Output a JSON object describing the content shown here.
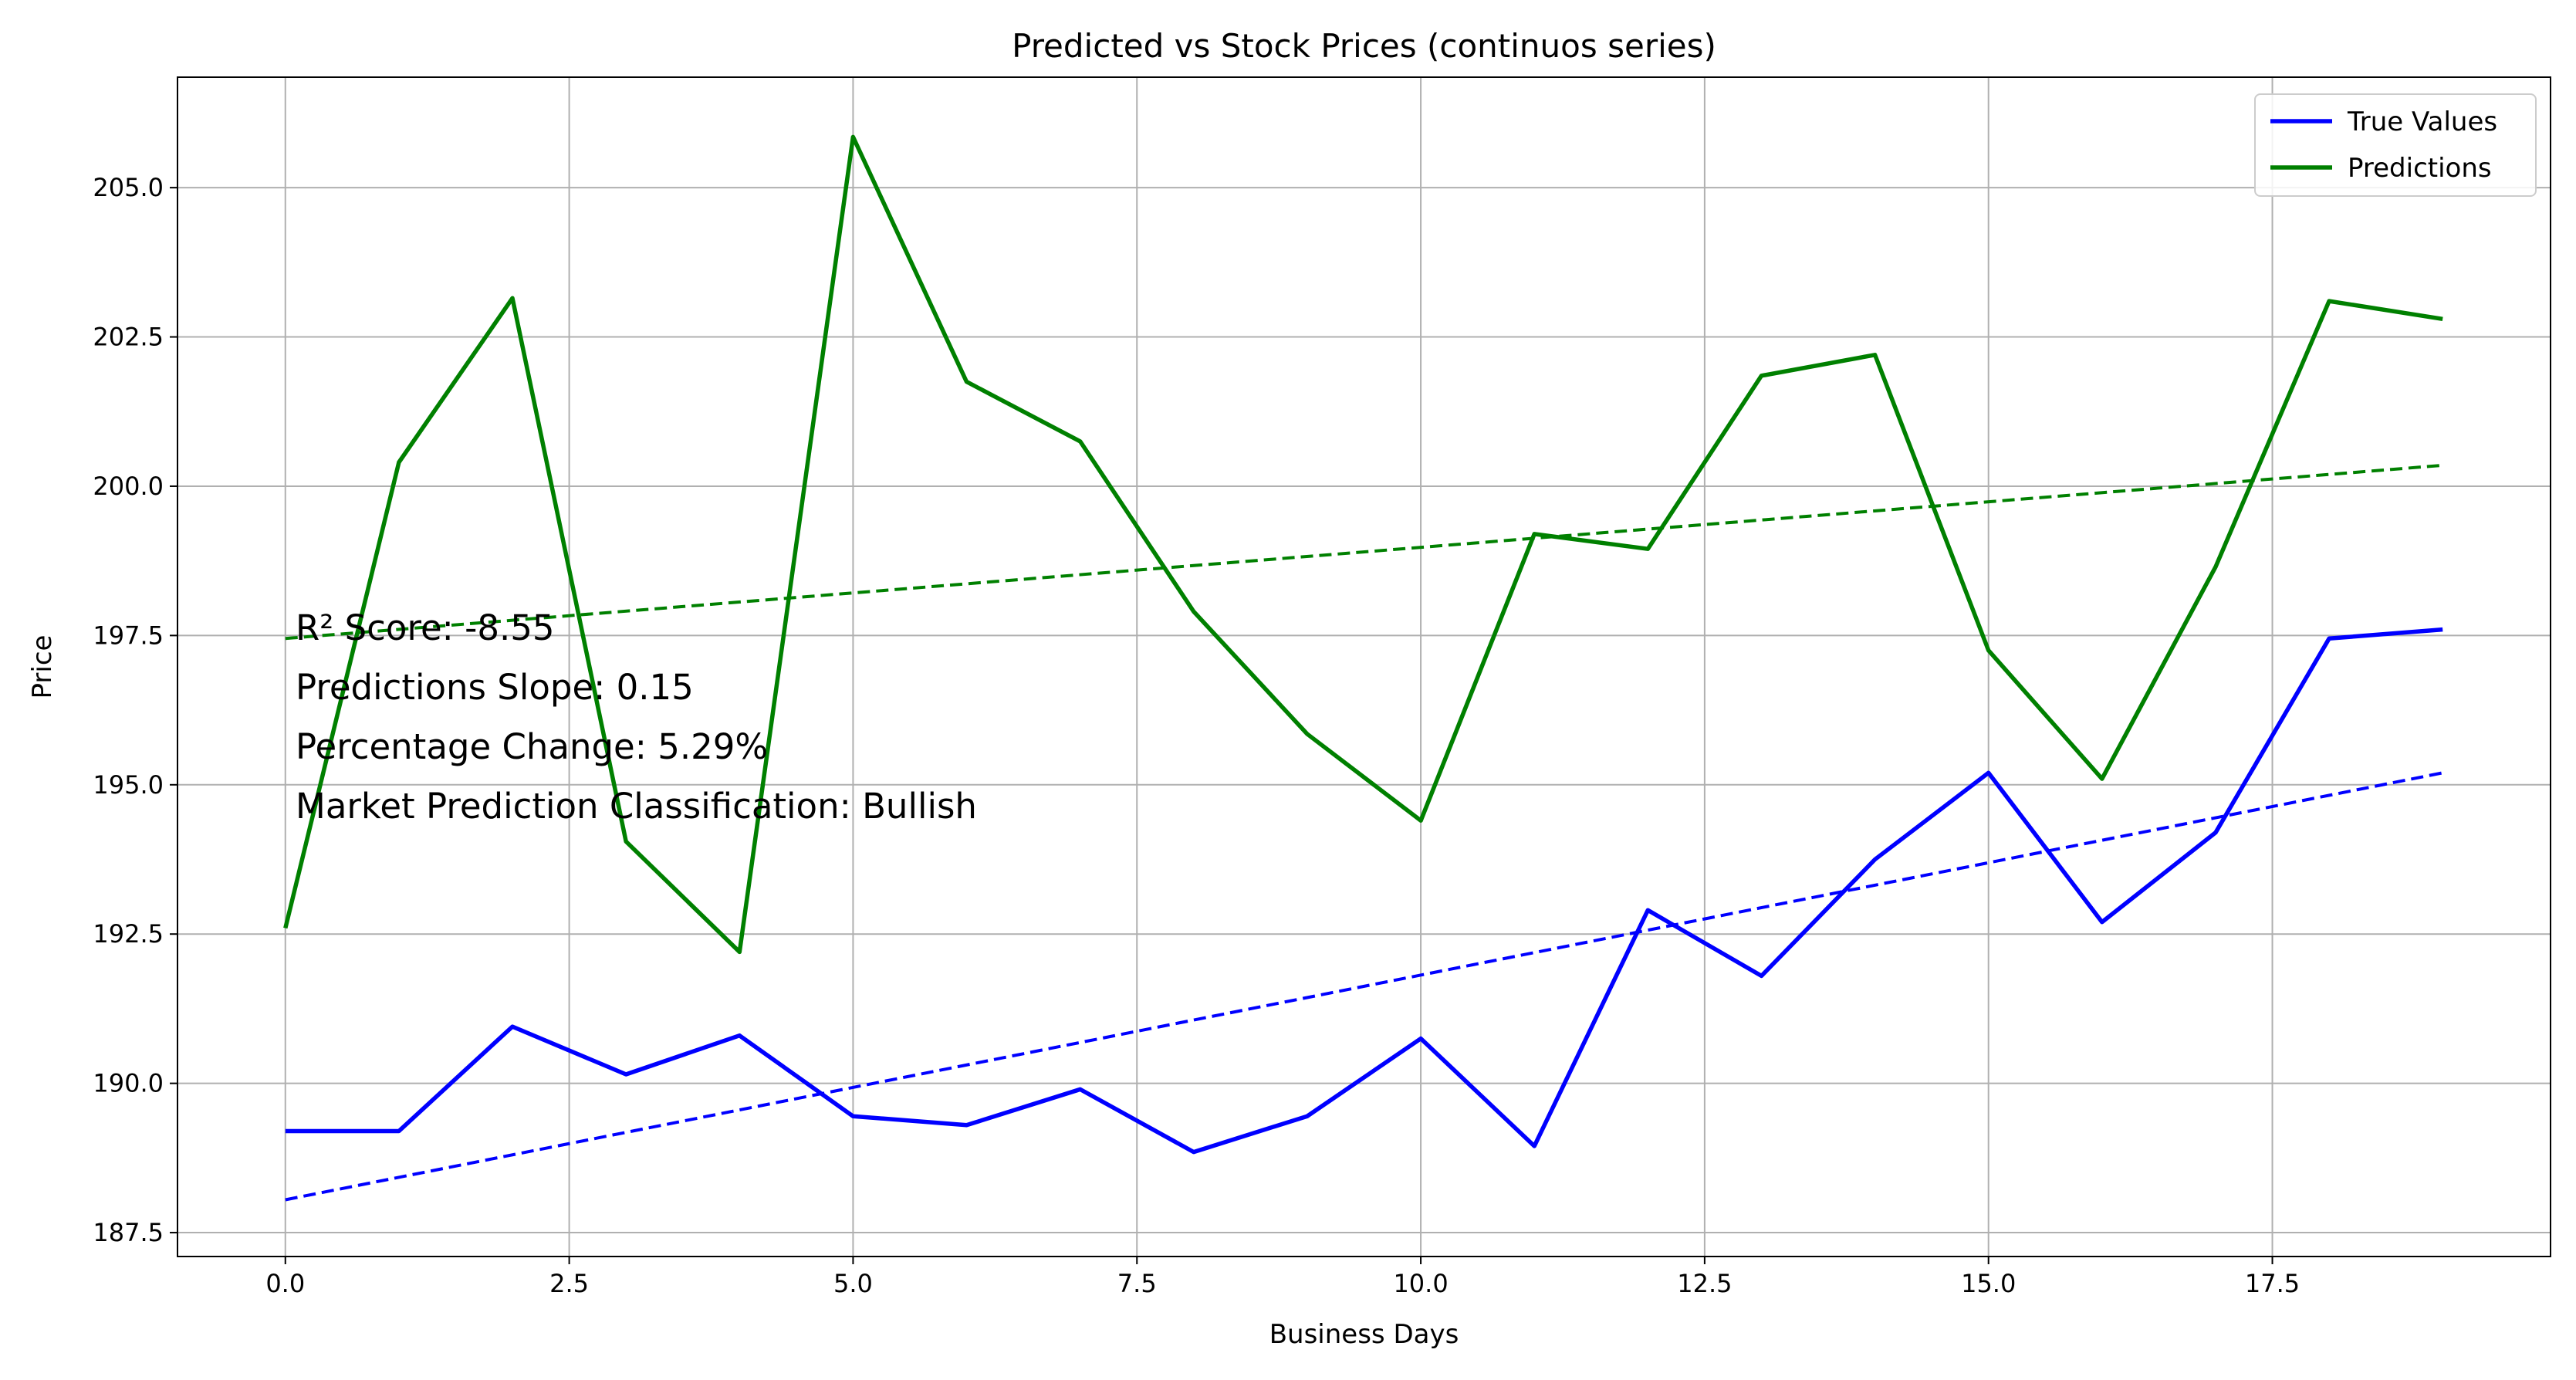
{
  "chart_data": {
    "type": "line",
    "title": "Predicted vs Stock Prices (continuos series)",
    "xlabel": "Business Days",
    "ylabel": "Price",
    "xlim": [
      -0.95,
      19.95
    ],
    "ylim": [
      187.1,
      206.85
    ],
    "xticks": [
      0.0,
      2.5,
      5.0,
      7.5,
      10.0,
      12.5,
      15.0,
      17.5
    ],
    "xtick_labels": [
      "0.0",
      "2.5",
      "5.0",
      "7.5",
      "10.0",
      "12.5",
      "15.0",
      "17.5"
    ],
    "yticks": [
      187.5,
      190.0,
      192.5,
      195.0,
      197.5,
      200.0,
      202.5,
      205.0
    ],
    "ytick_labels": [
      "187.5",
      "190.0",
      "192.5",
      "195.0",
      "197.5",
      "200.0",
      "202.5",
      "205.0"
    ],
    "grid": true,
    "legend_position": "top-right",
    "x": [
      0,
      1,
      2,
      3,
      4,
      5,
      6,
      7,
      8,
      9,
      10,
      11,
      12,
      13,
      14,
      15,
      16,
      17,
      18,
      19
    ],
    "series": [
      {
        "name": "True Values",
        "color": "#0000ff",
        "values": [
          189.2,
          189.2,
          190.95,
          190.15,
          190.8,
          189.45,
          189.3,
          189.9,
          188.85,
          189.45,
          190.75,
          188.95,
          192.9,
          191.8,
          193.75,
          195.2,
          192.7,
          194.2,
          197.45,
          197.6
        ]
      },
      {
        "name": "Predictions",
        "color": "#008000",
        "values": [
          192.6,
          200.4,
          203.15,
          194.05,
          192.2,
          205.85,
          201.75,
          200.75,
          197.9,
          195.85,
          194.4,
          199.2,
          198.95,
          201.85,
          202.2,
          197.25,
          195.1,
          198.65,
          203.1,
          202.8
        ]
      }
    ],
    "trend_lines": [
      {
        "series": "True Values",
        "color": "#0000ff",
        "style": "dashed",
        "x": [
          0,
          19
        ],
        "y": [
          188.05,
          195.2
        ]
      },
      {
        "series": "Predictions",
        "color": "#008000",
        "style": "dashed",
        "x": [
          0,
          19
        ],
        "y": [
          197.45,
          200.35
        ]
      }
    ],
    "annotations": [
      "R² Score: -8.55",
      "Predictions Slope: 0.15",
      "Percentage Change: 5.29%",
      "Market Prediction Classification: Bullish"
    ]
  }
}
